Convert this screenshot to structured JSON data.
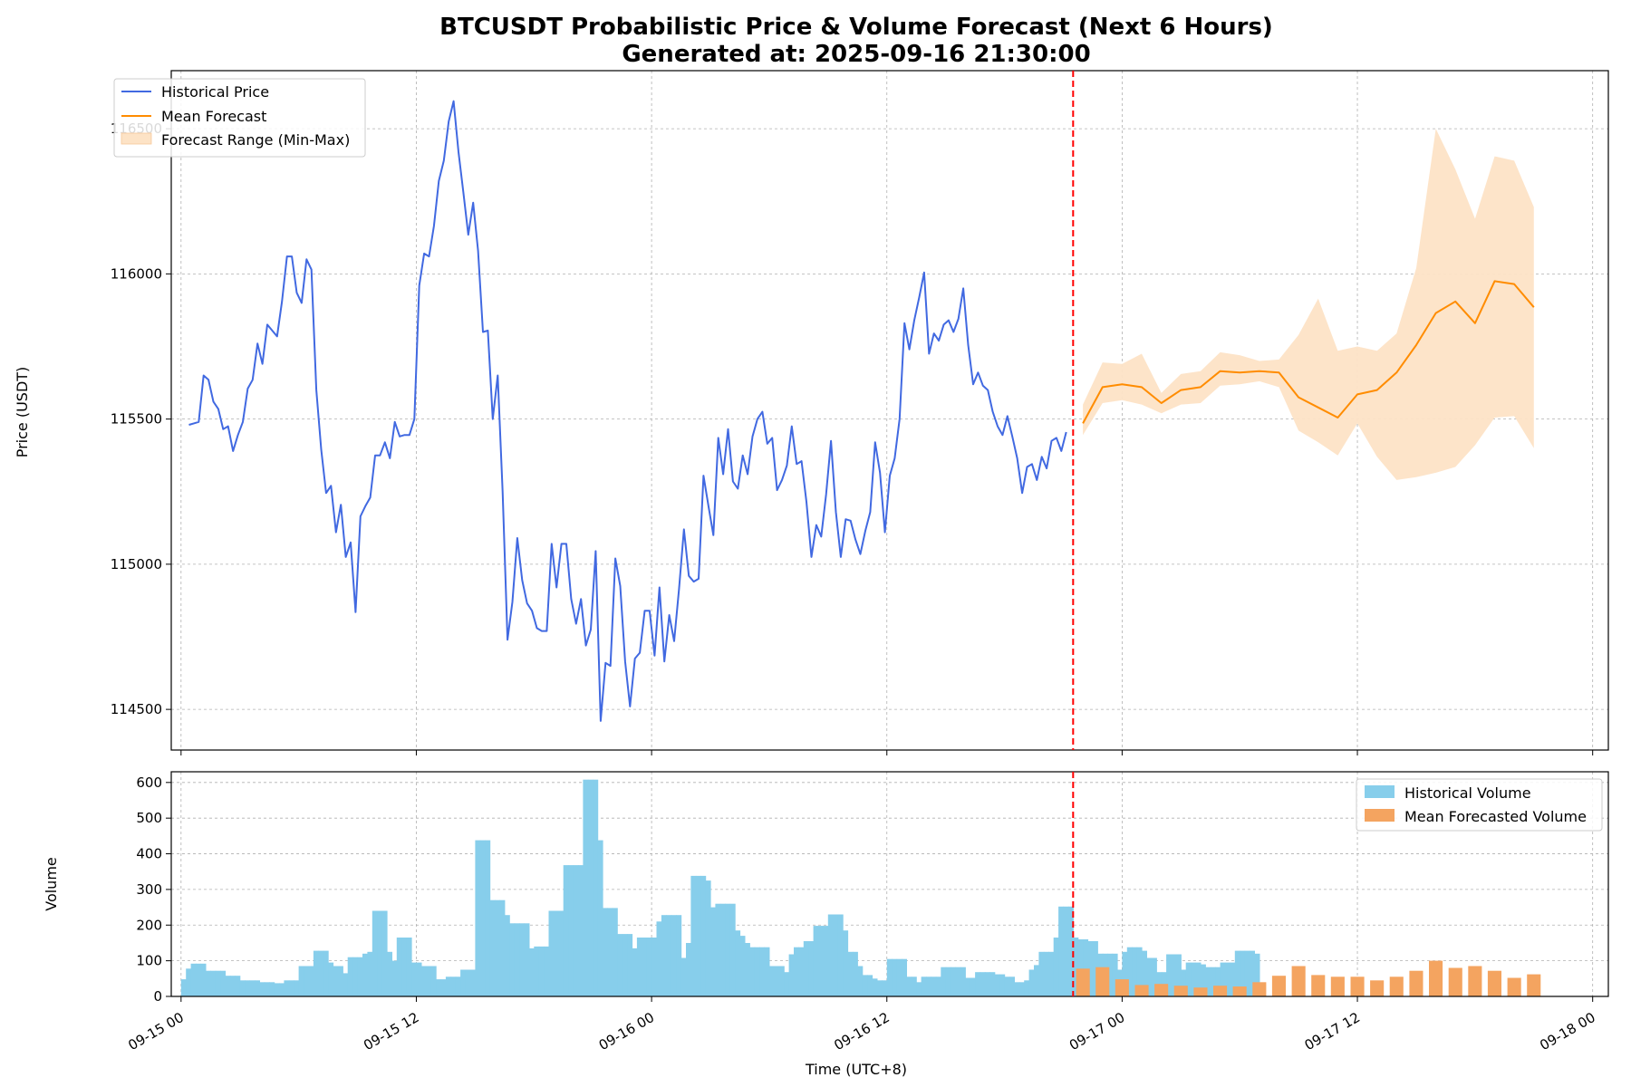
{
  "title_line1": "BTCUSDT Probabilistic Price & Volume Forecast (Next 6 Hours)",
  "title_line2": "Generated at: 2025-09-16 21:30:00",
  "chart_data": [
    {
      "type": "line",
      "ylabel": "Price (USDT)",
      "xlabel": "",
      "x_ticks": [
        "09-15 00",
        "09-15 12",
        "09-16 00",
        "09-16 12",
        "09-17 00",
        "09-17 12",
        "09-18 00"
      ],
      "x_range_hours": [
        -0.5,
        72.8
      ],
      "y_ticks": [
        114500,
        115000,
        115500,
        116000,
        116500
      ],
      "ylim": [
        114360,
        116700
      ],
      "grid": true,
      "forecast_start_hours": 45.5,
      "legend": {
        "placement": "upper-left",
        "entries": [
          "Historical Price",
          "Mean Forecast",
          "Forecast Range (Min-Max)"
        ]
      },
      "colors": {
        "historical": "#4169e1",
        "forecast": "#ff8c00",
        "range": "#fde3c6",
        "divider": "#ff0000"
      },
      "series": [
        {
          "name": "Historical Price",
          "x_start_hours": 0.4,
          "x_step_hours": 0.25,
          "values": [
            115480,
            115485,
            115490,
            115650,
            115635,
            115560,
            115535,
            115465,
            115475,
            115390,
            115445,
            115490,
            115605,
            115635,
            115760,
            115690,
            115825,
            115805,
            115785,
            115905,
            116060,
            116060,
            115935,
            115900,
            116050,
            116015,
            115600,
            115395,
            115245,
            115270,
            115110,
            115205,
            115025,
            115075,
            114835,
            115165,
            115200,
            115230,
            115375,
            115375,
            115420,
            115365,
            115490,
            115440,
            115445,
            115445,
            115500,
            115960,
            116070,
            116060,
            116165,
            116320,
            116390,
            116525,
            116595,
            116420,
            116280,
            116135,
            116245,
            116080,
            115800,
            115805,
            115500,
            115650,
            115250,
            114740,
            114870,
            115090,
            114945,
            114865,
            114840,
            114780,
            114770,
            114770,
            115070,
            114920,
            115070,
            115070,
            114880,
            114795,
            114880,
            114720,
            114775,
            115045,
            114460,
            114660,
            114650,
            115020,
            114925,
            114665,
            114510,
            114675,
            114695,
            114840,
            114840,
            114685,
            114920,
            114665,
            114825,
            114735,
            114915,
            115120,
            114960,
            114940,
            114950,
            115305,
            115200,
            115100,
            115435,
            115310,
            115465,
            115285,
            115260,
            115375,
            115310,
            115440,
            115500,
            115525,
            115415,
            115435,
            115255,
            115290,
            115340,
            115475,
            115345,
            115355,
            115215,
            115025,
            115135,
            115095,
            115240,
            115425,
            115180,
            115025,
            115155,
            115150,
            115085,
            115035,
            115115,
            115180,
            115420,
            115315,
            115110,
            115305,
            115365,
            115500,
            115830,
            115740,
            115840,
            115920,
            116005,
            115725,
            115795,
            115770,
            115825,
            115840,
            115800,
            115845,
            115950,
            115755,
            115620,
            115660,
            115615,
            115600,
            115525,
            115475,
            115445,
            115510,
            115440,
            115365,
            115245,
            115335,
            115345,
            115290,
            115370,
            115330,
            115425,
            115435,
            115390,
            115455
          ]
        },
        {
          "name": "Mean Forecast",
          "x_start_hours": 46.0,
          "x_step_hours": 1.0,
          "values": [
            115485,
            115610,
            115620,
            115610,
            115555,
            115600,
            115610,
            115665,
            115660,
            115665,
            115660,
            115575,
            115540,
            115505,
            115585,
            115600,
            115660,
            115755,
            115865,
            115905,
            115830,
            115975,
            115965,
            115885
          ]
        },
        {
          "name": "Forecast Range (Min-Max)",
          "x_start_hours": 46.0,
          "x_step_hours": 1.0,
          "min": [
            115445,
            115555,
            115565,
            115550,
            115520,
            115550,
            115555,
            115615,
            115620,
            115630,
            115610,
            115460,
            115420,
            115375,
            115485,
            115370,
            115290,
            115300,
            115315,
            115335,
            115410,
            115505,
            115510,
            115400
          ],
          "max": [
            115550,
            115695,
            115690,
            115725,
            115590,
            115655,
            115665,
            115730,
            115720,
            115700,
            115705,
            115790,
            115915,
            115735,
            115750,
            115735,
            115795,
            116020,
            116500,
            116360,
            116190,
            116405,
            116390,
            116230
          ]
        }
      ]
    },
    {
      "type": "bar",
      "ylabel": "Volume",
      "xlabel": "Time (UTC+8)",
      "x_ticks": [
        "09-15 00",
        "09-15 12",
        "09-16 00",
        "09-16 12",
        "09-17 00",
        "09-17 12",
        "09-18 00"
      ],
      "y_ticks": [
        0,
        100,
        200,
        300,
        400,
        500,
        600
      ],
      "ylim": [
        0,
        630
      ],
      "grid": true,
      "legend": {
        "placement": "upper-right",
        "entries": [
          "Historical Volume",
          "Mean Forecasted Volume"
        ]
      },
      "colors": {
        "historical": "#87ceeb",
        "forecast": "#f4a460"
      },
      "series": [
        {
          "name": "Historical Volume",
          "x_start_hours": 0.125,
          "x_step_hours": 0.25,
          "values": [
            48,
            78,
            92,
            92,
            92,
            72,
            72,
            72,
            72,
            58,
            58,
            58,
            45,
            45,
            45,
            45,
            40,
            40,
            40,
            37,
            37,
            45,
            45,
            45,
            85,
            85,
            85,
            128,
            128,
            128,
            95,
            85,
            85,
            65,
            110,
            110,
            110,
            120,
            125,
            240,
            240,
            240,
            125,
            100,
            165,
            165,
            165,
            95,
            95,
            85,
            85,
            85,
            48,
            48,
            55,
            55,
            55,
            75,
            75,
            75,
            438,
            438,
            438,
            270,
            270,
            270,
            228,
            205,
            205,
            205,
            205,
            135,
            140,
            140,
            140,
            240,
            240,
            240,
            368,
            368,
            368,
            368,
            608,
            608,
            608,
            438,
            248,
            248,
            248,
            175,
            175,
            175,
            135,
            165,
            165,
            165,
            165,
            210,
            228,
            228,
            228,
            228,
            108,
            150,
            338,
            338,
            338,
            325,
            250,
            260,
            260,
            260,
            260,
            185,
            170,
            150,
            138,
            138,
            138,
            138,
            85,
            85,
            85,
            68,
            118,
            138,
            138,
            155,
            155,
            198,
            198,
            198,
            230,
            230,
            230,
            185,
            125,
            125,
            85,
            60,
            60,
            50,
            45,
            45,
            105,
            105,
            105,
            105,
            55,
            55,
            40,
            55,
            55,
            55,
            55,
            82,
            82,
            82,
            82,
            82,
            52,
            52,
            68,
            68,
            68,
            68,
            62,
            62,
            55,
            55,
            40,
            40,
            45,
            75,
            88,
            125,
            125,
            125,
            165,
            252,
            252,
            252,
            165,
            160,
            160,
            155,
            155,
            120,
            120,
            120,
            120,
            75,
            125,
            138,
            138,
            138,
            128,
            108,
            108,
            68,
            68,
            118,
            118,
            118,
            75,
            95,
            95,
            95,
            90,
            82,
            82,
            82,
            95,
            95,
            95,
            128,
            128,
            128,
            128,
            120
          ]
        },
        {
          "name": "Mean Forecasted Volume",
          "x_start_hours": 46.0,
          "x_step_hours": 1.0,
          "values": [
            78,
            82,
            48,
            32,
            35,
            30,
            25,
            30,
            28,
            40,
            58,
            85,
            60,
            55,
            55,
            45,
            55,
            72,
            100,
            80,
            85,
            72,
            52,
            62
          ]
        }
      ]
    }
  ]
}
